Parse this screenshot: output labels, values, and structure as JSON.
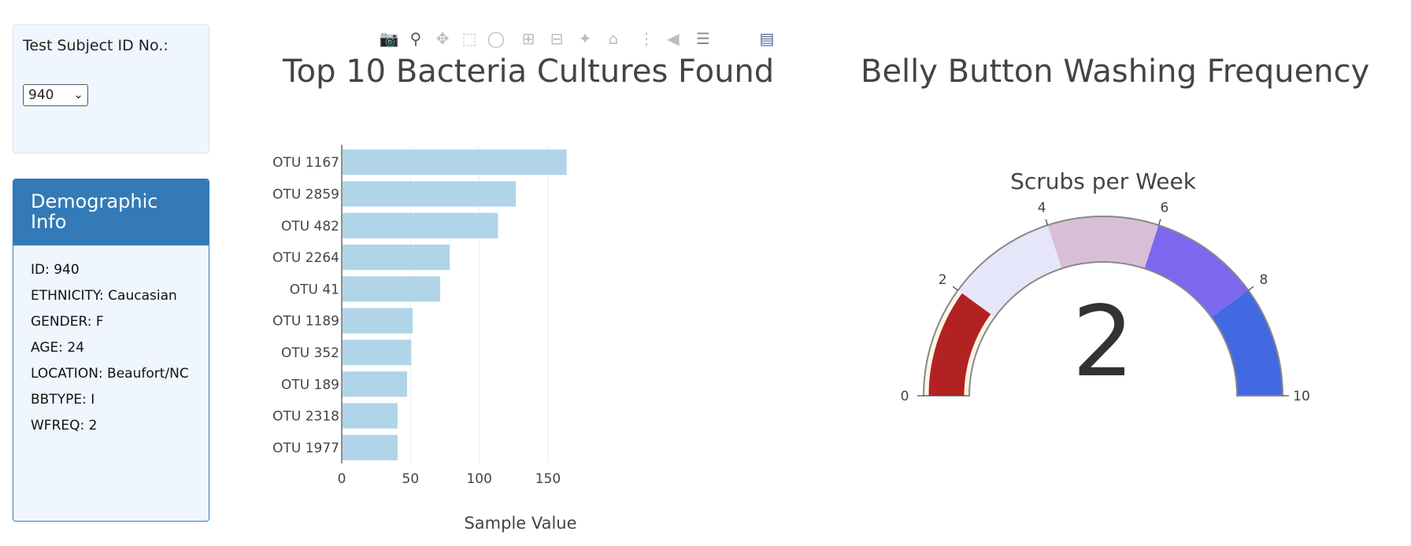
{
  "selector": {
    "label": "Test Subject ID No.:",
    "value": "940"
  },
  "demographics": {
    "heading": "Demographic Info",
    "rows": [
      "ID: 940",
      "ETHNICITY: Caucasian",
      "GENDER: F",
      "AGE: 24",
      "LOCATION: Beaufort/NC",
      "BBTYPE: I",
      "WFREQ: 2"
    ]
  },
  "modebar_icons": [
    "camera-icon",
    "zoom-icon",
    "pan-icon",
    "box-select-icon",
    "lasso-icon",
    "zoom-in-icon",
    "zoom-out-icon",
    "autoscale-icon",
    "reset-axes-icon",
    "spike-lines-icon",
    "hover-closest-icon",
    "hover-compare-icon",
    "plotly-logo-icon"
  ],
  "chart_data": [
    {
      "type": "bar",
      "orientation": "horizontal",
      "title": "Top 10 Bacteria Cultures Found",
      "xlabel": "Sample Value",
      "ylabel": "",
      "categories": [
        "OTU 1167",
        "OTU 2859",
        "OTU 482",
        "OTU 2264",
        "OTU 41",
        "OTU 1189",
        "OTU 352",
        "OTU 189",
        "OTU 2318",
        "OTU 1977"
      ],
      "values": [
        163,
        126,
        113,
        78,
        71,
        51,
        50,
        47,
        40,
        40
      ],
      "xlim": [
        0,
        170
      ],
      "xticks": [
        0,
        50,
        100,
        150
      ],
      "grid": true,
      "bar_color": "#b0d4e8"
    },
    {
      "type": "gauge",
      "title": "Belly Button Washing Frequency",
      "subtitle": "Scrubs per Week",
      "value": 2,
      "range": [
        0,
        10
      ],
      "ticks": [
        0,
        2,
        4,
        6,
        8,
        10
      ],
      "steps": [
        {
          "range": [
            0,
            2
          ],
          "color": "#fdf5e6"
        },
        {
          "range": [
            2,
            4
          ],
          "color": "#e6e6fa"
        },
        {
          "range": [
            4,
            6
          ],
          "color": "#d8bfd8"
        },
        {
          "range": [
            6,
            8
          ],
          "color": "#7b68ee"
        },
        {
          "range": [
            8,
            10
          ],
          "color": "#4169e1"
        }
      ],
      "bar_color": "#b22222"
    }
  ]
}
